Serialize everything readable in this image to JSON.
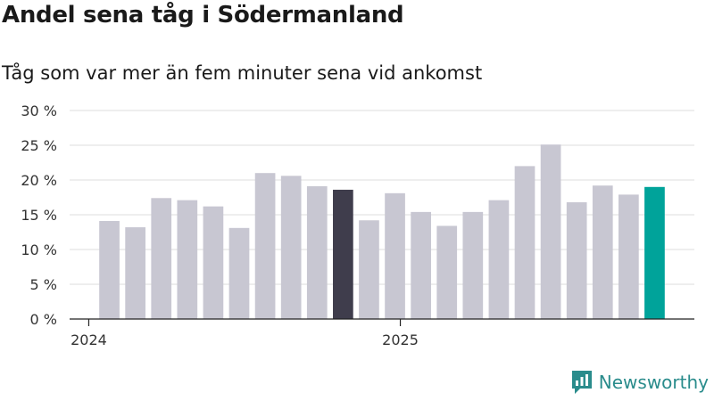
{
  "title": "Andel sena tåg i Södermanland",
  "subtitle": "Tåg som var mer än fem minuter sena vid ankomst",
  "brand": {
    "name": "Newsworthy",
    "icon": "newsworthy-logo-icon",
    "color": "#2a8c8c"
  },
  "colors": {
    "default_bar": "#c8c7d2",
    "highlight_dark": "#3f3d4c",
    "highlight_latest": "#00a39a",
    "grid": "#dddddd",
    "axis": "#222222"
  },
  "chart_data": {
    "type": "bar",
    "title": "Andel sena tåg i Södermanland",
    "subtitle": "Tåg som var mer än fem minuter sena vid ankomst",
    "xlabel": "",
    "ylabel": "",
    "ylim": [
      0,
      30
    ],
    "yticks": [
      0,
      5,
      10,
      15,
      20,
      25,
      30
    ],
    "ytick_labels": [
      "0 %",
      "5 %",
      "10 %",
      "15 %",
      "20 %",
      "25 %",
      "30 %"
    ],
    "grid": true,
    "categories": [
      "2024-01",
      "2024-02",
      "2024-03",
      "2024-04",
      "2024-05",
      "2024-06",
      "2024-07",
      "2024-08",
      "2024-09",
      "2024-10",
      "2024-11",
      "2024-12",
      "2025-01",
      "2025-02",
      "2025-03",
      "2025-04",
      "2025-05",
      "2025-06",
      "2025-07",
      "2025-08",
      "2025-09",
      "2025-10"
    ],
    "values": [
      14.1,
      13.2,
      17.4,
      17.1,
      16.2,
      13.1,
      21.0,
      20.6,
      19.1,
      18.6,
      14.2,
      18.1,
      15.4,
      13.4,
      15.4,
      17.1,
      22.0,
      25.1,
      16.8,
      19.2,
      17.9,
      19.0
    ],
    "highlight": [
      "default",
      "default",
      "default",
      "default",
      "default",
      "default",
      "default",
      "default",
      "default",
      "dark",
      "default",
      "default",
      "default",
      "default",
      "default",
      "default",
      "default",
      "default",
      "default",
      "default",
      "default",
      "latest"
    ],
    "x_tick_labels": [
      {
        "label": "2024",
        "position": -0.5
      },
      {
        "label": "2025",
        "position": 11.5
      }
    ]
  }
}
